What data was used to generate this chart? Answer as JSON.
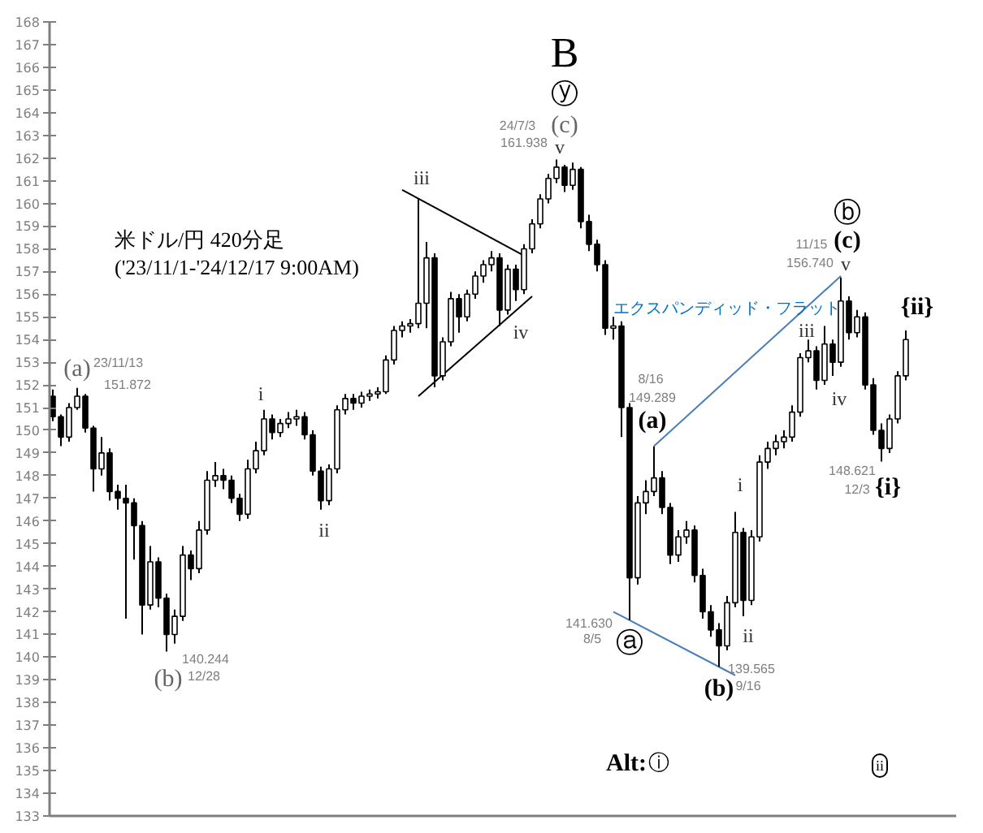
{
  "chart_data": {
    "type": "candlestick",
    "title": "米ドル/円 420分足",
    "subtitle": "('23/11/1-'24/12/17 9:00AM)",
    "categories": [
      null,
      null,
      null,
      null,
      null,
      null,
      null,
      null,
      null,
      null,
      null,
      null,
      null,
      null,
      null,
      null,
      null,
      null,
      null,
      null,
      null,
      null,
      null,
      null,
      null,
      null,
      null,
      null,
      null,
      null,
      null,
      null,
      null,
      null,
      null,
      null,
      null,
      null,
      null,
      null,
      null,
      null,
      null,
      null,
      null,
      null,
      null,
      null,
      null,
      null,
      null,
      null,
      null,
      null,
      null,
      null,
      null,
      null,
      null,
      null,
      null,
      null,
      null,
      null,
      null,
      null,
      null,
      null,
      null,
      null,
      null,
      null,
      null,
      null,
      null,
      null,
      null,
      null,
      null,
      null,
      null,
      null,
      null,
      null,
      null,
      null,
      null,
      null,
      null,
      null,
      null,
      null,
      null,
      null,
      null,
      null,
      null,
      null,
      null,
      null,
      null,
      null,
      null,
      null,
      null,
      null
    ],
    "ohlc": [
      [
        151.5,
        151.8,
        150.4,
        150.6
      ],
      [
        150.6,
        150.7,
        149.3,
        149.7
      ],
      [
        149.7,
        151.2,
        149.5,
        151.0
      ],
      [
        151.0,
        151.872,
        150.9,
        151.5
      ],
      [
        151.5,
        151.6,
        149.9,
        150.1
      ],
      [
        150.1,
        150.2,
        147.3,
        148.3
      ],
      [
        148.3,
        149.7,
        148.0,
        149.0
      ],
      [
        149.0,
        149.2,
        146.9,
        147.3
      ],
      [
        147.3,
        147.6,
        146.5,
        147.0
      ],
      [
        147.0,
        147.6,
        141.7,
        146.8
      ],
      [
        146.8,
        147.0,
        144.3,
        145.8
      ],
      [
        145.8,
        146.0,
        141.0,
        142.3
      ],
      [
        142.3,
        144.9,
        142.1,
        144.2
      ],
      [
        144.2,
        144.4,
        142.2,
        142.6
      ],
      [
        142.6,
        142.8,
        140.244,
        141.0
      ],
      [
        141.0,
        142.1,
        140.6,
        141.8
      ],
      [
        141.8,
        144.9,
        141.6,
        144.5
      ],
      [
        144.5,
        144.7,
        143.4,
        143.9
      ],
      [
        143.9,
        146.0,
        143.7,
        145.6
      ],
      [
        145.6,
        148.2,
        145.4,
        147.8
      ],
      [
        147.8,
        148.6,
        147.5,
        148.0
      ],
      [
        148.0,
        148.3,
        147.4,
        147.8
      ],
      [
        147.8,
        148.0,
        146.8,
        147.0
      ],
      [
        147.0,
        147.2,
        146.0,
        146.3
      ],
      [
        146.3,
        148.7,
        146.1,
        148.3
      ],
      [
        148.3,
        149.5,
        148.1,
        149.1
      ],
      [
        149.1,
        150.9,
        148.9,
        150.5
      ],
      [
        150.5,
        150.7,
        149.6,
        149.9
      ],
      [
        149.9,
        150.5,
        149.7,
        150.3
      ],
      [
        150.3,
        150.8,
        150.1,
        150.5
      ],
      [
        150.5,
        150.9,
        150.2,
        150.6
      ],
      [
        150.6,
        150.8,
        149.6,
        149.8
      ],
      [
        149.8,
        150.0,
        148.0,
        148.2
      ],
      [
        148.2,
        148.4,
        146.5,
        146.9
      ],
      [
        146.9,
        148.5,
        146.7,
        148.3
      ],
      [
        148.3,
        151.1,
        148.1,
        150.9
      ],
      [
        150.9,
        151.6,
        150.7,
        151.4
      ],
      [
        151.4,
        151.6,
        150.9,
        151.2
      ],
      [
        151.2,
        151.7,
        151.0,
        151.5
      ],
      [
        151.5,
        151.8,
        151.3,
        151.6
      ],
      [
        151.6,
        151.9,
        151.4,
        151.7
      ],
      [
        151.7,
        153.3,
        151.6,
        153.1
      ],
      [
        153.1,
        154.6,
        152.9,
        154.4
      ],
      [
        154.4,
        154.8,
        154.1,
        154.6
      ],
      [
        154.6,
        154.9,
        154.3,
        154.7
      ],
      [
        154.7,
        160.2,
        154.5,
        155.6
      ],
      [
        155.6,
        158.3,
        154.5,
        157.6
      ],
      [
        157.6,
        157.8,
        151.9,
        152.4
      ],
      [
        152.4,
        154.1,
        152.2,
        153.9
      ],
      [
        153.9,
        156.1,
        153.7,
        155.8
      ],
      [
        155.8,
        156.0,
        154.3,
        155.0
      ],
      [
        155.0,
        156.2,
        154.8,
        156.0
      ],
      [
        156.0,
        157.0,
        155.8,
        156.8
      ],
      [
        156.8,
        157.5,
        156.5,
        157.3
      ],
      [
        157.3,
        157.9,
        157.0,
        157.6
      ],
      [
        157.6,
        157.8,
        154.6,
        155.3
      ],
      [
        155.3,
        157.3,
        155.1,
        157.1
      ],
      [
        157.1,
        157.3,
        155.7,
        156.2
      ],
      [
        156.2,
        158.2,
        156.0,
        158.0
      ],
      [
        158.0,
        159.3,
        157.8,
        159.1
      ],
      [
        159.1,
        160.4,
        158.9,
        160.2
      ],
      [
        160.2,
        161.3,
        160.0,
        161.1
      ],
      [
        161.1,
        161.938,
        160.9,
        161.6
      ],
      [
        161.6,
        161.7,
        160.5,
        160.8
      ],
      [
        160.8,
        161.8,
        160.6,
        161.5
      ],
      [
        161.5,
        161.6,
        158.9,
        159.2
      ],
      [
        159.2,
        159.5,
        157.9,
        158.2
      ],
      [
        158.2,
        158.4,
        157.0,
        157.3
      ],
      [
        157.3,
        157.5,
        154.2,
        154.5
      ],
      [
        154.5,
        155.0,
        154.0,
        154.6
      ],
      [
        154.6,
        154.8,
        149.7,
        151.0
      ],
      [
        151.0,
        151.2,
        141.63,
        143.5
      ],
      [
        143.5,
        147.1,
        143.2,
        146.8
      ],
      [
        146.8,
        147.8,
        146.3,
        147.3
      ],
      [
        147.3,
        149.289,
        147.1,
        147.9
      ],
      [
        147.9,
        148.2,
        146.3,
        146.6
      ],
      [
        146.6,
        146.8,
        144.1,
        144.5
      ],
      [
        144.5,
        145.6,
        144.2,
        145.3
      ],
      [
        145.3,
        146.0,
        145.0,
        145.6
      ],
      [
        145.6,
        145.8,
        143.3,
        143.6
      ],
      [
        143.6,
        143.9,
        141.7,
        142.0
      ],
      [
        142.0,
        142.3,
        140.9,
        141.2
      ],
      [
        141.2,
        141.5,
        139.565,
        140.5
      ],
      [
        140.5,
        142.7,
        140.3,
        142.4
      ],
      [
        142.4,
        146.4,
        142.2,
        145.5
      ],
      [
        145.5,
        145.7,
        141.8,
        142.5
      ],
      [
        142.5,
        145.6,
        142.3,
        145.3
      ],
      [
        145.3,
        148.9,
        145.1,
        148.6
      ],
      [
        148.6,
        149.5,
        148.3,
        149.2
      ],
      [
        149.2,
        149.8,
        148.9,
        149.5
      ],
      [
        149.5,
        150.0,
        149.2,
        149.7
      ],
      [
        149.7,
        151.1,
        149.5,
        150.8
      ],
      [
        150.8,
        153.4,
        150.6,
        153.2
      ],
      [
        153.2,
        154.0,
        153.0,
        153.5
      ],
      [
        153.5,
        153.7,
        151.8,
        152.2
      ],
      [
        152.2,
        154.6,
        152.0,
        153.8
      ],
      [
        153.8,
        154.0,
        152.4,
        153.0
      ],
      [
        153.0,
        156.74,
        152.8,
        155.7
      ],
      [
        155.7,
        155.9,
        154.0,
        154.3
      ],
      [
        154.3,
        155.3,
        154.1,
        155.0
      ],
      [
        155.0,
        155.2,
        151.8,
        152.0
      ],
      [
        152.0,
        152.3,
        149.8,
        150.0
      ],
      [
        150.0,
        150.3,
        148.621,
        149.2
      ],
      [
        149.2,
        150.7,
        149.0,
        150.5
      ],
      [
        150.5,
        152.6,
        150.3,
        152.4
      ],
      [
        152.4,
        154.4,
        152.2,
        154.0
      ]
    ],
    "color": "#000000",
    "series": [
      {
        "type": "line",
        "color": "#000000",
        "values": [
          null,
          null,
          null,
          null,
          null,
          null,
          null,
          null,
          null,
          null,
          null,
          null,
          null,
          null,
          null,
          null,
          null,
          null,
          null,
          null,
          null,
          null,
          null,
          null,
          null,
          null,
          null,
          null,
          null,
          null,
          null,
          null,
          null,
          null,
          null,
          null,
          null,
          null,
          null,
          null,
          null,
          null,
          null,
          160.6,
          null,
          null,
          null,
          null,
          null,
          null,
          null,
          null,
          null,
          null,
          null,
          null,
          null,
          null,
          157.7,
          null,
          null,
          null,
          null,
          null,
          null,
          null,
          null,
          null,
          null,
          null,
          null,
          null,
          null,
          null,
          null,
          null,
          null,
          null,
          null,
          null,
          null,
          null,
          null,
          null,
          null,
          null,
          null,
          null,
          null,
          null,
          null,
          null,
          null,
          null,
          null,
          null,
          null,
          null,
          null,
          null,
          null,
          null,
          null,
          null,
          null,
          null
        ]
      },
      {
        "type": "line",
        "color": "#000000",
        "values": [
          null,
          null,
          null,
          null,
          null,
          null,
          null,
          null,
          null,
          null,
          null,
          null,
          null,
          null,
          null,
          null,
          null,
          null,
          null,
          null,
          null,
          null,
          null,
          null,
          null,
          null,
          null,
          null,
          null,
          null,
          null,
          null,
          null,
          null,
          null,
          null,
          null,
          null,
          null,
          null,
          null,
          null,
          null,
          null,
          null,
          151.5,
          null,
          null,
          null,
          null,
          null,
          null,
          null,
          null,
          null,
          null,
          null,
          null,
          null,
          155.9,
          null,
          null,
          null,
          null,
          null,
          null,
          null,
          null,
          null,
          null,
          null,
          null,
          null,
          null,
          null,
          null,
          null,
          null,
          null,
          null,
          null,
          null,
          null,
          null,
          null,
          null,
          null,
          null,
          null,
          null,
          null,
          null,
          null,
          null,
          null,
          null,
          null,
          null,
          null,
          null,
          null,
          null,
          null,
          null,
          null,
          null
        ]
      },
      {
        "type": "line",
        "color": "#4a7ebb",
        "values": [
          null,
          null,
          null,
          null,
          null,
          null,
          null,
          null,
          null,
          null,
          null,
          null,
          null,
          null,
          null,
          null,
          null,
          null,
          null,
          null,
          null,
          null,
          null,
          null,
          null,
          null,
          null,
          null,
          null,
          null,
          null,
          null,
          null,
          null,
          null,
          null,
          null,
          null,
          null,
          null,
          null,
          null,
          null,
          null,
          null,
          null,
          null,
          null,
          null,
          null,
          null,
          null,
          null,
          null,
          null,
          null,
          null,
          null,
          null,
          null,
          null,
          null,
          null,
          null,
          null,
          null,
          null,
          null,
          null,
          null,
          null,
          null,
          null,
          null,
          149.3,
          null,
          null,
          null,
          null,
          null,
          null,
          null,
          null,
          null,
          null,
          null,
          null,
          null,
          null,
          null,
          null,
          null,
          null,
          null,
          null,
          null,
          null,
          156.8,
          null,
          null,
          null,
          null,
          null,
          null,
          null,
          null
        ]
      },
      {
        "type": "line",
        "color": "#4a7ebb",
        "values": [
          null,
          null,
          null,
          null,
          null,
          null,
          null,
          null,
          null,
          null,
          null,
          null,
          null,
          null,
          null,
          null,
          null,
          null,
          null,
          null,
          null,
          null,
          null,
          null,
          null,
          null,
          null,
          null,
          null,
          null,
          null,
          null,
          null,
          null,
          null,
          null,
          null,
          null,
          null,
          null,
          null,
          null,
          null,
          null,
          null,
          null,
          null,
          null,
          null,
          null,
          null,
          null,
          null,
          null,
          null,
          null,
          null,
          null,
          null,
          null,
          null,
          null,
          null,
          null,
          null,
          null,
          null,
          null,
          null,
          142.0,
          null,
          null,
          null,
          null,
          null,
          null,
          null,
          null,
          null,
          null,
          null,
          null,
          null,
          null,
          139.2,
          null,
          null,
          null,
          null,
          null,
          null,
          null,
          null,
          null,
          null,
          null,
          null,
          null,
          null,
          null,
          null,
          null,
          null,
          null,
          null,
          null
        ]
      }
    ],
    "ylim": [
      133,
      168
    ],
    "yticks": [
      133,
      134,
      135,
      136,
      137,
      138,
      139,
      140,
      141,
      142,
      143,
      144,
      145,
      146,
      147,
      148,
      149,
      150,
      151,
      152,
      153,
      154,
      155,
      156,
      157,
      158,
      159,
      160,
      161,
      162,
      163,
      164,
      165,
      166,
      167,
      168
    ],
    "tick_labels": "y",
    "annotations": [
      "(a)",
      "23/11/13",
      "151.872",
      "(b)",
      "140.244",
      "12/28",
      "i",
      "ii",
      "iii",
      "iv",
      "B",
      "ⓨ",
      "(c)",
      "24/7/3",
      "161.938",
      "v",
      "8/16",
      "149.289",
      "(a)",
      "エクスパンディッド・フラット",
      "141.630",
      "8/5",
      "ⓐ",
      "(b)",
      "139.565",
      "9/16",
      "i",
      "ii",
      "iii",
      "iv",
      "v",
      "(c)",
      "ⓑ",
      "11/15",
      "156.740",
      "{ii}",
      "148.621",
      "12/3",
      "{i}",
      "Alt:",
      "ⓘ",
      "ii"
    ]
  }
}
